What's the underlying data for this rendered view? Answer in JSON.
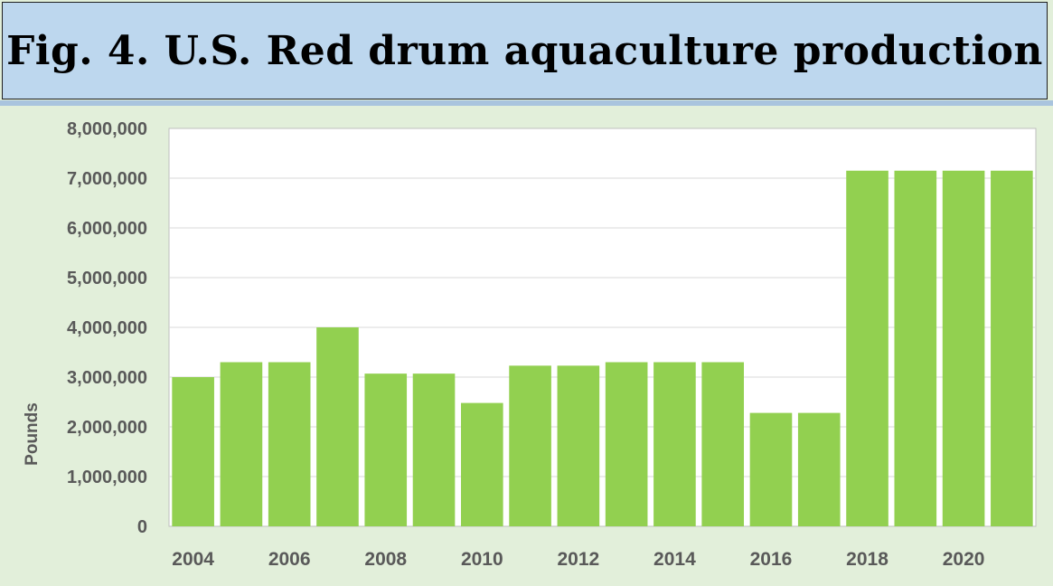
{
  "title": "Fig. 4. U.S. Red drum aquaculture production",
  "colors": {
    "bar": "#92d050",
    "page_background": "#e2efda",
    "title_background": "#bdd7ee",
    "plot_background": "#ffffff",
    "gridline": "#d9d9d9",
    "axis_text": "#595959"
  },
  "chart_data": {
    "type": "bar",
    "categories": [
      "2004",
      "2005",
      "2006",
      "2007",
      "2008",
      "2009",
      "2010",
      "2011",
      "2012",
      "2013",
      "2014",
      "2015",
      "2016",
      "2017",
      "2018",
      "2019",
      "2020",
      "2021"
    ],
    "values": [
      3000000,
      3300000,
      3300000,
      4000000,
      3070000,
      3070000,
      2480000,
      3230000,
      3230000,
      3300000,
      3300000,
      3300000,
      2280000,
      2280000,
      7150000,
      7150000,
      7150000,
      7150000
    ],
    "xtick_labels": [
      "2004",
      "2006",
      "2008",
      "2010",
      "2012",
      "2014",
      "2016",
      "2018",
      "2020"
    ],
    "ytick_labels": [
      "0",
      "1,000,000",
      "2,000,000",
      "3,000,000",
      "4,000,000",
      "5,000,000",
      "6,000,000",
      "7,000,000",
      "8,000,000"
    ],
    "ylabel": "Pounds",
    "xlabel": "",
    "ylim": [
      0,
      8000000
    ],
    "grid": true,
    "legend": "none"
  }
}
